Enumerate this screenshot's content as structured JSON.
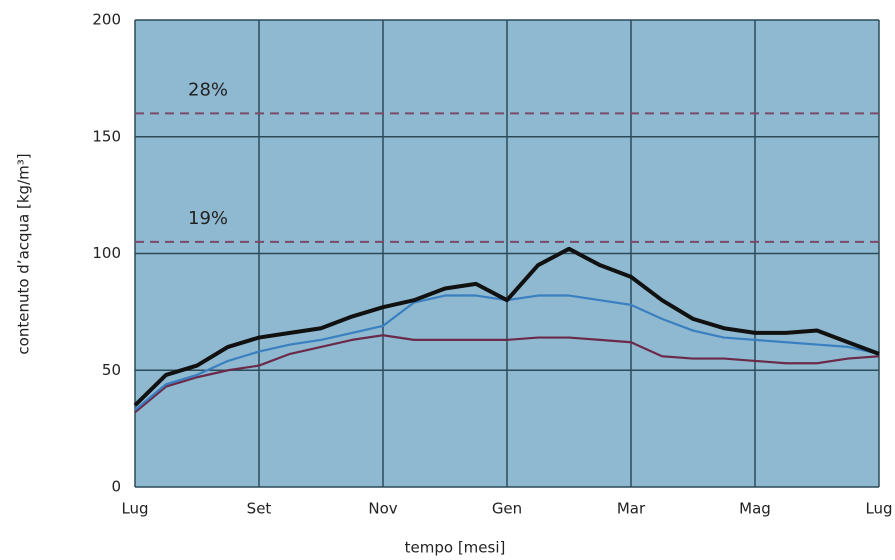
{
  "chart_data": {
    "type": "line",
    "x_label": "tempo [mesi]",
    "y_label": "contenuto d’acqua [kg/m³]",
    "x": [
      0,
      0.5,
      1,
      1.5,
      2,
      2.5,
      3,
      3.5,
      4,
      4.5,
      5,
      5.5,
      6,
      6.5,
      7,
      7.5,
      8,
      8.5,
      9,
      9.5,
      10,
      10.5,
      11,
      11.5,
      12
    ],
    "xlim": [
      0,
      12
    ],
    "xticks": [
      {
        "value": 0,
        "label": "Lug"
      },
      {
        "value": 2,
        "label": "Set"
      },
      {
        "value": 4,
        "label": "Nov"
      },
      {
        "value": 6,
        "label": "Gen"
      },
      {
        "value": 8,
        "label": "Mar"
      },
      {
        "value": 10,
        "label": "Mag"
      },
      {
        "value": 12,
        "label": "Lug"
      }
    ],
    "ylim": [
      0,
      200
    ],
    "yticks": [
      0,
      50,
      100,
      150,
      200
    ],
    "grid": true,
    "series": [
      {
        "color": "#111111",
        "values": [
          35,
          48,
          52,
          60,
          64,
          66,
          68,
          73,
          77,
          80,
          85,
          87,
          80,
          95,
          102,
          95,
          90,
          80,
          72,
          68,
          66,
          66,
          67,
          62,
          57
        ]
      },
      {
        "color": "#3a7fc0",
        "values": [
          33,
          44,
          48,
          54,
          58,
          61,
          63,
          66,
          69,
          79,
          82,
          82,
          80,
          82,
          82,
          80,
          78,
          72,
          67,
          64,
          63,
          62,
          61,
          60,
          57
        ]
      },
      {
        "color": "#6b2a4a",
        "values": [
          32,
          43,
          47,
          50,
          52,
          57,
          60,
          63,
          65,
          63,
          63,
          63,
          63,
          64,
          64,
          63,
          62,
          56,
          55,
          55,
          54,
          53,
          53,
          55,
          56
        ]
      }
    ],
    "reference_lines": [
      {
        "value": 160,
        "label": "28%"
      },
      {
        "value": 105,
        "label": "19%"
      }
    ],
    "reference_color": "#7a4a6a"
  }
}
